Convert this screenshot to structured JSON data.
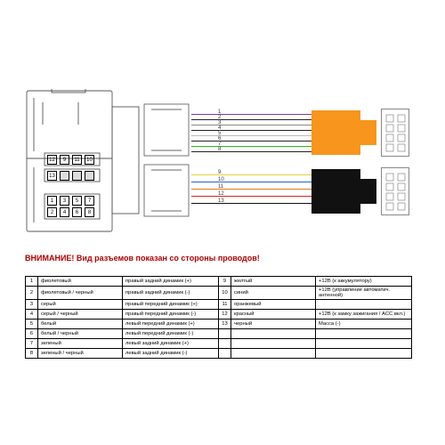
{
  "warning_text": "ВНИМАНИЕ! Вид разъемов показан со стороны проводов!",
  "warning_color": "#b00000",
  "bg": "#ffffff",
  "line_color": "#555555",
  "main_connector": {
    "stroke": "#555555",
    "fill": "#ffffff"
  },
  "pins_top_row": [
    "12",
    "9",
    "11",
    "10"
  ],
  "pins_mid_row": [
    "13",
    "",
    "",
    ""
  ],
  "pins_bot_grid": [
    [
      "1",
      "3",
      "5",
      "7"
    ],
    [
      "2",
      "4",
      "6",
      "8"
    ]
  ],
  "wires_top": [
    {
      "n": "1",
      "color": "#7b3f9e"
    },
    {
      "n": "2",
      "color": "#222222"
    },
    {
      "n": "3",
      "color": "#888888"
    },
    {
      "n": "4",
      "color": "#222222"
    },
    {
      "n": "5",
      "color": "#f5f5f5",
      "border": "#bbb"
    },
    {
      "n": "6",
      "color": "#222222"
    },
    {
      "n": "7",
      "color": "#2dbb2d"
    },
    {
      "n": "8",
      "color": "#222222"
    }
  ],
  "wires_bot": [
    {
      "n": "9",
      "color": "#e8d13a"
    },
    {
      "n": "10",
      "color": "#2a62c9"
    },
    {
      "n": "11",
      "color": "#e07a1e"
    },
    {
      "n": "12",
      "color": "#d22"
    },
    {
      "n": "13",
      "color": "#111"
    }
  ],
  "block_top": {
    "color": "#f7951d"
  },
  "block_bot": {
    "color": "#111111"
  },
  "end_connector": {
    "fill": "#ffffff",
    "border": "#888888",
    "pin_count": 8
  },
  "legend": {
    "rows_left": [
      {
        "i": "1",
        "col": "фиолетовый",
        "desc": "правый задний динамик (+)"
      },
      {
        "i": "2",
        "col": "фиолетовый / черный",
        "desc": "правый задний динамик (-)"
      },
      {
        "i": "3",
        "col": "серый",
        "desc": "правый передний динамик (+)"
      },
      {
        "i": "4",
        "col": "серый / черный",
        "desc": "правый передний динамик (-)"
      },
      {
        "i": "5",
        "col": "белый",
        "desc": "левый передний динамик (+)"
      },
      {
        "i": "6",
        "col": "белый / черный",
        "desc": "левый передний динамик (-)"
      },
      {
        "i": "7",
        "col": "зеленый",
        "desc": "левый задний динамик (+)"
      },
      {
        "i": "8",
        "col": "зеленый / черный",
        "desc": "левый задний динамик (-)"
      }
    ],
    "rows_right": [
      {
        "i": "9",
        "col": "желтый",
        "desc": "+12В (к аккумулятору)"
      },
      {
        "i": "10",
        "col": "синий",
        "desc": "+12В (управление автоматич. антенной)"
      },
      {
        "i": "11",
        "col": "оранжевый",
        "desc": ""
      },
      {
        "i": "12",
        "col": "красный",
        "desc": "+12В (к замку зажигания / ACC вкл.)"
      },
      {
        "i": "13",
        "col": "черный",
        "desc": "Масса (-)"
      }
    ]
  }
}
